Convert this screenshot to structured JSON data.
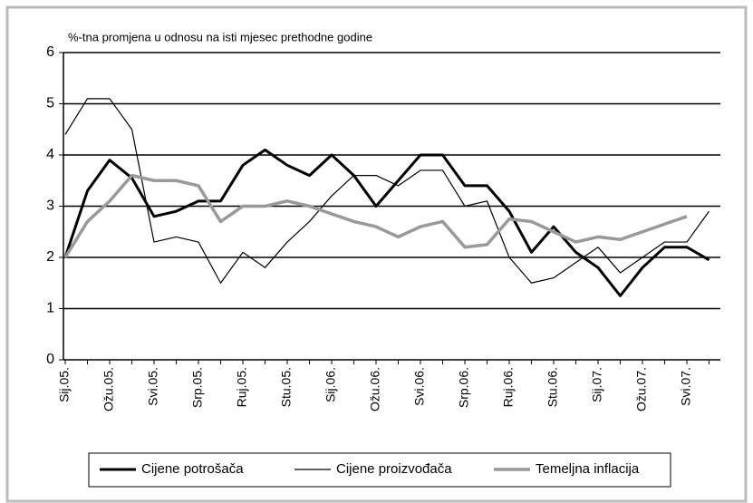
{
  "chart_data": {
    "type": "line",
    "subtitle": "%-tna promjena u odnosu na isti mjesec prethodne godine",
    "categories": [
      "Sij.05.",
      null,
      "Ožu.05.",
      null,
      "Svi.05.",
      null,
      "Srp.05.",
      null,
      "Ruj.05.",
      null,
      "Stu.05.",
      null,
      "Sij.06.",
      null,
      "Ožu.06.",
      null,
      "Svi.06.",
      null,
      "Srp.06.",
      null,
      "Ruj.06.",
      null,
      "Stu.06.",
      null,
      "Sij.07.",
      null,
      "Ožu.07.",
      null,
      "Svi.07.",
      null
    ],
    "series": [
      {
        "name": "Cijene potrošača",
        "color": "#000000",
        "line_width": 3,
        "values": [
          2.0,
          3.3,
          3.9,
          3.55,
          2.8,
          2.9,
          3.1,
          3.1,
          3.8,
          4.1,
          3.8,
          3.6,
          4.0,
          3.6,
          3.0,
          3.5,
          4.0,
          4.0,
          3.4,
          3.4,
          2.9,
          2.1,
          2.6,
          2.1,
          1.8,
          1.25,
          1.8,
          2.2,
          2.2,
          1.95
        ]
      },
      {
        "name": "Cijene proizvođača",
        "color": "#000000",
        "line_width": 1.2,
        "values": [
          4.4,
          5.1,
          5.1,
          4.5,
          2.3,
          2.4,
          2.3,
          1.5,
          2.1,
          1.8,
          2.3,
          2.7,
          3.2,
          3.6,
          3.6,
          3.4,
          3.7,
          3.7,
          3.0,
          3.1,
          2.0,
          1.5,
          1.6,
          1.9,
          2.2,
          1.7,
          2.0,
          2.3,
          2.3,
          2.9
        ]
      },
      {
        "name": "Temeljna inflacija",
        "color": "#999999",
        "line_width": 3.5,
        "values": [
          2.0,
          2.7,
          3.1,
          3.6,
          3.5,
          3.5,
          3.4,
          2.7,
          3.0,
          3.0,
          3.1,
          3.0,
          2.85,
          2.7,
          2.6,
          2.4,
          2.6,
          2.7,
          2.2,
          2.25,
          2.75,
          2.7,
          2.5,
          2.3,
          2.4,
          2.35,
          2.5,
          2.65,
          2.8,
          null
        ]
      }
    ],
    "ylim": [
      0,
      6
    ],
    "yticks": [
      0,
      1,
      2,
      3,
      4,
      5,
      6
    ],
    "grid": true,
    "legend": "bottom"
  }
}
